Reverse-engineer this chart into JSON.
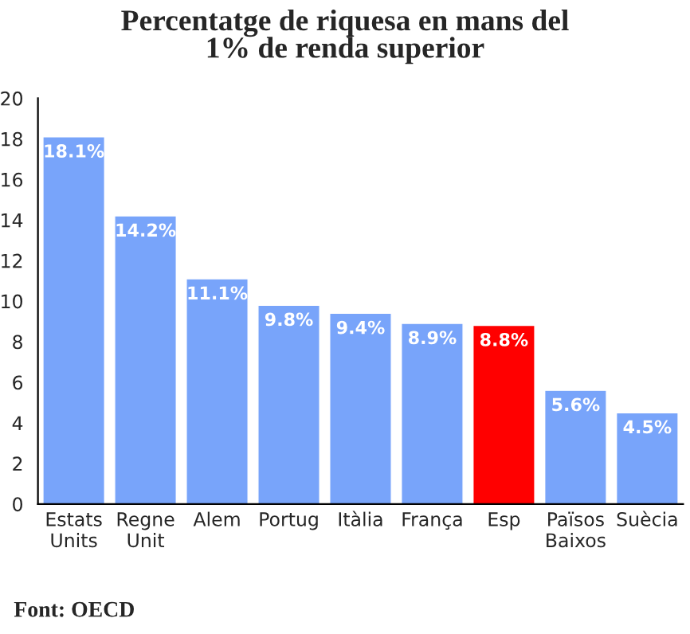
{
  "chart_data": {
    "type": "bar",
    "title": "Percentatge de riquesa en mans del\n1% de renda superior",
    "categories": [
      "Estats\nUnits",
      "Regne\nUnit",
      "Alem",
      "Portug",
      "Itàlia",
      "França",
      "Esp",
      "Països\nBaixos",
      "Suècia"
    ],
    "values": [
      18.1,
      14.2,
      11.1,
      9.8,
      9.4,
      8.9,
      8.8,
      5.6,
      4.5
    ],
    "colors": [
      "#78a4fa",
      "#78a4fa",
      "#78a4fa",
      "#78a4fa",
      "#78a4fa",
      "#78a4fa",
      "#ff0000",
      "#78a4fa",
      "#78a4fa"
    ],
    "value_labels": [
      "18.1%",
      "14.2%",
      "11.1%",
      "9.8%",
      "9.4%",
      "8.9%",
      "8.8%",
      "5.6%",
      "4.5%"
    ],
    "ylim": [
      0,
      20
    ],
    "yticks": [
      0,
      2,
      4,
      6,
      8,
      10,
      12,
      14,
      16,
      18,
      20
    ],
    "grid": false,
    "annotations": [
      "Font: OECD"
    ]
  }
}
